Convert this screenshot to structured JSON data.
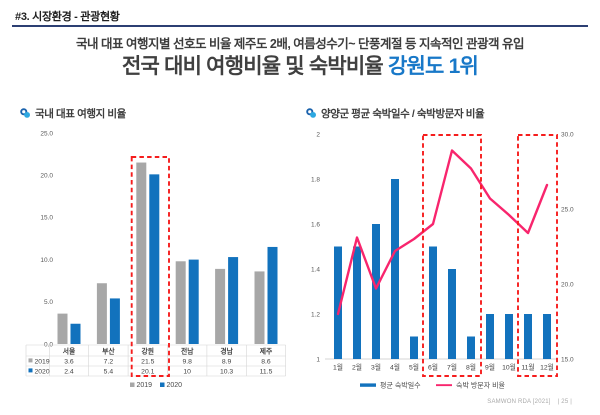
{
  "slide": {
    "header": "#3. 시장환경 - 관광현황",
    "subtitle": "국내 대표 여행지별 선호도 비율 제주도 2배, 여름성수기~ 단풍계절 등 지속적인 관광객 유입",
    "title_plain": "전국 대비 여행비율 및 숙박비율 ",
    "title_highlight": "강원도 1위",
    "footer_source": "SAMWON RDA [2021]",
    "footer_page": "| 25 |"
  },
  "colors": {
    "bar_blue": "#1272bd",
    "bar_gray": "#a7a7a7",
    "line_pink": "#f8256d",
    "highlight_red": "#f51d1d",
    "rule_navy": "#2c3f73",
    "title_highlight_blue": "#1878c8",
    "tick_text": "#595959",
    "table_text": "#404040",
    "table_border": "#d6d6d6"
  },
  "chart_data": [
    {
      "type": "bar",
      "title": "국내 대표 여행지 비율",
      "categories": [
        "서울",
        "부산",
        "강원",
        "전남",
        "경남",
        "제주"
      ],
      "series": [
        {
          "name": "2019",
          "color": "#a7a7a7",
          "values": [
            3.6,
            7.2,
            21.5,
            9.8,
            8.9,
            8.6
          ]
        },
        {
          "name": "2020",
          "color": "#1272bd",
          "values": [
            2.4,
            5.4,
            20.1,
            10,
            10.3,
            11.5
          ]
        }
      ],
      "ylim": [
        0,
        25
      ],
      "yticks": [
        {
          "v": 25,
          "label": "25.0"
        },
        {
          "v": 20,
          "label": "20.0"
        },
        {
          "v": 15,
          "label": "15.0"
        },
        {
          "v": 10,
          "label": "10.0"
        },
        {
          "v": 5,
          "label": "5.0"
        },
        {
          "v": 0,
          "label": "0.0"
        }
      ],
      "legend": [
        "2019",
        "2020"
      ],
      "data_table_shown": true,
      "highlight": {
        "category": "강원",
        "style": "red-dashed-box"
      },
      "grid": false,
      "legend_position": "bottom"
    },
    {
      "type": "combo",
      "title": "양양군 평균 숙박일수 / 숙박방문자 비율",
      "categories": [
        "1월",
        "2월",
        "3월",
        "4월",
        "5월",
        "6월",
        "7월",
        "8월",
        "9월",
        "10월",
        "11월",
        "12월"
      ],
      "bar_series": {
        "name": "평균 숙박일수",
        "axis": "left",
        "color": "#1272bd",
        "values": [
          1.5,
          1.5,
          1.6,
          1.8,
          1.1,
          1.5,
          1.4,
          1.1,
          1.2,
          1.2,
          1.2,
          1.2
        ]
      },
      "line_series": {
        "name": "숙박 방문자 비율",
        "axis": "right",
        "color": "#f8256d",
        "values": [
          18.0,
          23.1,
          19.7,
          22.2,
          23.0,
          24.0,
          28.9,
          27.7,
          25.7,
          24.6,
          23.4,
          26.6
        ]
      },
      "left_ylim": [
        1,
        2
      ],
      "left_yticks": [
        {
          "v": 2,
          "label": "2"
        },
        {
          "v": 1.8,
          "label": "1.8"
        },
        {
          "v": 1.6,
          "label": "1.6"
        },
        {
          "v": 1.4,
          "label": "1.4"
        },
        {
          "v": 1.2,
          "label": "1.2"
        },
        {
          "v": 1,
          "label": "1"
        }
      ],
      "right_ylim": [
        15,
        30
      ],
      "right_yticks": [
        {
          "v": 30,
          "label": "30.0"
        },
        {
          "v": 25,
          "label": "25.0"
        },
        {
          "v": 20,
          "label": "20.0"
        },
        {
          "v": 15,
          "label": "15.0"
        }
      ],
      "highlight_ranges": [
        [
          "6월",
          "8월"
        ],
        [
          "11월",
          "12월"
        ]
      ],
      "grid": false,
      "legend_position": "bottom"
    }
  ]
}
